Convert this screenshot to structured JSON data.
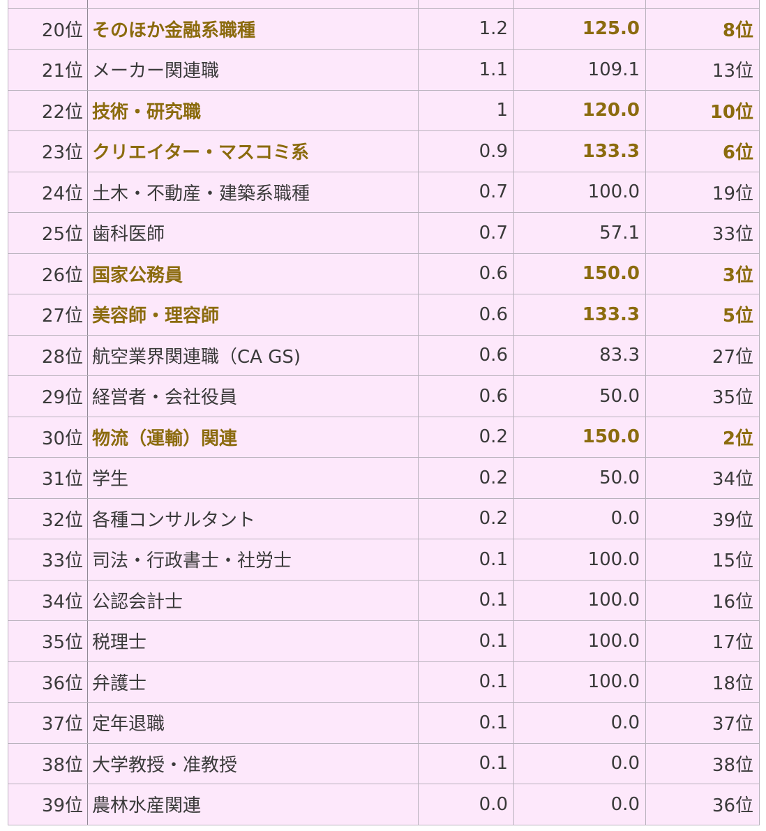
{
  "table": {
    "rows": [
      {
        "rank": "",
        "job": "",
        "share": "",
        "index": "",
        "prev_rank": "",
        "highlight": false
      },
      {
        "rank": "20位",
        "job": "そのほか金融系職種",
        "share": "1.2",
        "index": "125.0",
        "prev_rank": "8位",
        "highlight": true
      },
      {
        "rank": "21位",
        "job": "メーカー関連職",
        "share": "1.1",
        "index": "109.1",
        "prev_rank": "13位",
        "highlight": false
      },
      {
        "rank": "22位",
        "job": "技術・研究職",
        "share": "1",
        "index": "120.0",
        "prev_rank": "10位",
        "highlight": true
      },
      {
        "rank": "23位",
        "job": "クリエイター・マスコミ系",
        "share": "0.9",
        "index": "133.3",
        "prev_rank": "6位",
        "highlight": true
      },
      {
        "rank": "24位",
        "job": "土木・不動産・建築系職種",
        "share": "0.7",
        "index": "100.0",
        "prev_rank": "19位",
        "highlight": false
      },
      {
        "rank": "25位",
        "job": "歯科医師",
        "share": "0.7",
        "index": "57.1",
        "prev_rank": "33位",
        "highlight": false
      },
      {
        "rank": "26位",
        "job": "国家公務員",
        "share": "0.6",
        "index": "150.0",
        "prev_rank": "3位",
        "highlight": true
      },
      {
        "rank": "27位",
        "job": "美容師・理容師",
        "share": "0.6",
        "index": "133.3",
        "prev_rank": "5位",
        "highlight": true
      },
      {
        "rank": "28位",
        "job": "航空業界関連職（CA GS)",
        "share": "0.6",
        "index": "83.3",
        "prev_rank": "27位",
        "highlight": false
      },
      {
        "rank": "29位",
        "job": "経営者・会社役員",
        "share": "0.6",
        "index": "50.0",
        "prev_rank": "35位",
        "highlight": false
      },
      {
        "rank": "30位",
        "job": "物流（運輸）関連",
        "share": "0.2",
        "index": "150.0",
        "prev_rank": "2位",
        "highlight": true
      },
      {
        "rank": "31位",
        "job": "学生",
        "share": "0.2",
        "index": "50.0",
        "prev_rank": "34位",
        "highlight": false
      },
      {
        "rank": "32位",
        "job": "各種コンサルタント",
        "share": "0.2",
        "index": "0.0",
        "prev_rank": "39位",
        "highlight": false
      },
      {
        "rank": "33位",
        "job": "司法・行政書士・社労士",
        "share": "0.1",
        "index": "100.0",
        "prev_rank": "15位",
        "highlight": false
      },
      {
        "rank": "34位",
        "job": "公認会計士",
        "share": "0.1",
        "index": "100.0",
        "prev_rank": "16位",
        "highlight": false
      },
      {
        "rank": "35位",
        "job": "税理士",
        "share": "0.1",
        "index": "100.0",
        "prev_rank": "17位",
        "highlight": false
      },
      {
        "rank": "36位",
        "job": "弁護士",
        "share": "0.1",
        "index": "100.0",
        "prev_rank": "18位",
        "highlight": false
      },
      {
        "rank": "37位",
        "job": "定年退職",
        "share": "0.1",
        "index": "0.0",
        "prev_rank": "37位",
        "highlight": false
      },
      {
        "rank": "38位",
        "job": "大学教授・准教授",
        "share": "0.1",
        "index": "0.0",
        "prev_rank": "38位",
        "highlight": false
      },
      {
        "rank": "39位",
        "job": "農林水産関連",
        "share": "0.0",
        "index": "0.0",
        "prev_rank": "36位",
        "highlight": false
      }
    ]
  },
  "colors": {
    "row_background": "#fde8fb",
    "border": "#b9b2bd",
    "highlight_text": "#8b6b0e",
    "normal_text": "#3a3a3a"
  }
}
